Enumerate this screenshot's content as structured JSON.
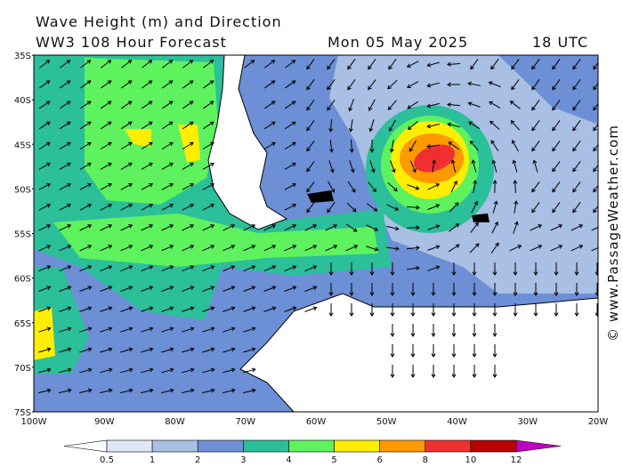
{
  "header": {
    "title": "Wave Height (m) and Direction",
    "subtitle": "WW3 108 Hour Forecast",
    "date": "Mon 05 May 2025",
    "time": "18 UTC"
  },
  "lat_labels": [
    "35S",
    "40S",
    "45S",
    "50S",
    "55S",
    "60S",
    "65S",
    "70S",
    "75S"
  ],
  "lon_labels": [
    "100W",
    "90W",
    "80W",
    "70W",
    "60W",
    "50W",
    "40W",
    "30W",
    "20W"
  ],
  "colorbar": {
    "labels": [
      "0.5",
      "1",
      "2",
      "3",
      "4",
      "5",
      "6",
      "8",
      "10",
      "12"
    ],
    "colors": [
      "#ffffff",
      "#dfe6f7",
      "#a9bfe4",
      "#6d8fd6",
      "#2bbf9a",
      "#5ef25e",
      "#ffee00",
      "#ff9900",
      "#f03030",
      "#bb0000",
      "#c000c0"
    ]
  },
  "watermark": "© www.PassageWeather.com"
}
